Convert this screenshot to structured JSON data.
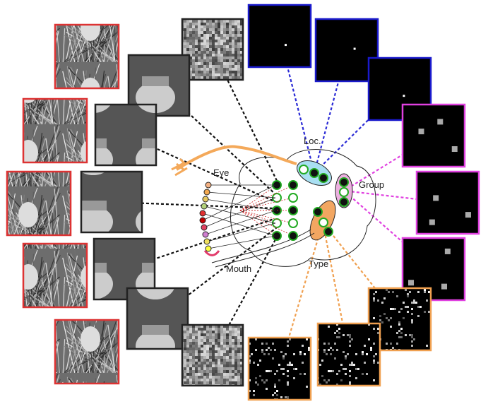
{
  "labels": {
    "eye": "Eye",
    "mouth": "Mouth",
    "loc": "Loc.",
    "group": "Group",
    "type": "Type"
  }
}
